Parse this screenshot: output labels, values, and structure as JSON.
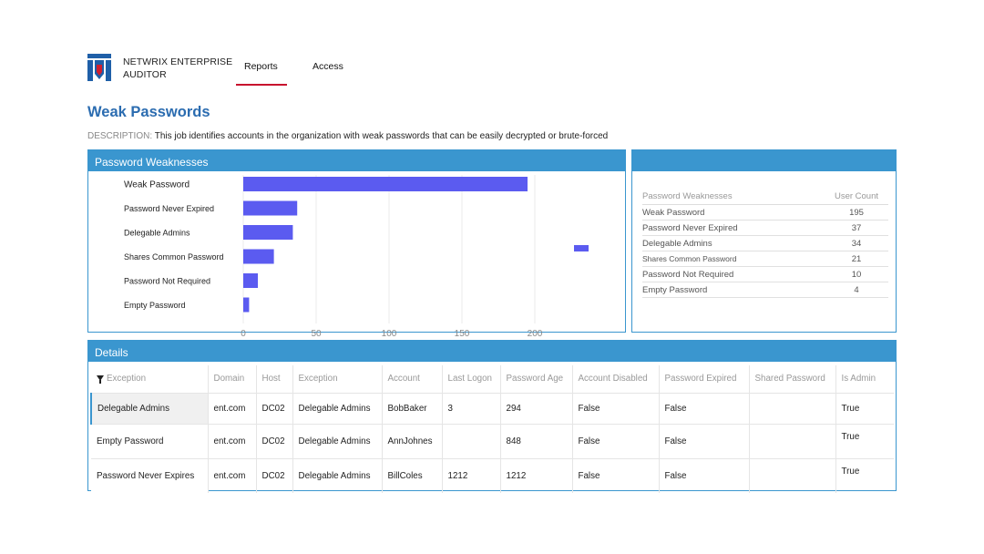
{
  "header": {
    "brand_line1": "NETWRIX ENTERPRISE",
    "brand_line2": "AUDITOR",
    "tabs": [
      {
        "label": "Reports",
        "active": true
      },
      {
        "label": "Access",
        "active": false
      }
    ],
    "accent_color": "#c8102e"
  },
  "page": {
    "title": "Weak Passwords",
    "description_label": "DESCRIPTION:",
    "description_text": "This job identifies accounts in the organization with weak passwords that can be easily decrypted or brute-forced"
  },
  "chart_panel": {
    "title": "Password Weaknesses"
  },
  "chart_data": {
    "type": "bar",
    "orientation": "horizontal",
    "categories": [
      "Weak Password",
      "Password Never Expired",
      "Delegable Admins",
      "Shares Common Password",
      "Password Not Required",
      "Empty Password"
    ],
    "values": [
      195,
      37,
      34,
      21,
      10,
      4
    ],
    "xticks": [
      0,
      50,
      100,
      150,
      200
    ],
    "xlim": [
      0,
      200
    ],
    "grid": true,
    "bar_color": "#5b5bf0",
    "legend_swatch": true
  },
  "summary_table": {
    "headers": [
      "Password Weaknesses",
      "User Count"
    ],
    "rows": [
      [
        "Weak Password",
        "195"
      ],
      [
        "Password Never Expired",
        "37"
      ],
      [
        "Delegable Admins",
        "34"
      ],
      [
        "Shares Common Password",
        "21"
      ],
      [
        "Password Not Required",
        "10"
      ],
      [
        "Empty Password",
        "4"
      ]
    ]
  },
  "details": {
    "title": "Details",
    "filter_header": "Exception",
    "headers": [
      "Domain",
      "Host",
      "Exception",
      "Account",
      "Last Logon",
      "Password Age",
      "Account Disabled",
      "Password Expired",
      "Shared Password",
      "Is Admin"
    ],
    "rows": [
      {
        "exception": "Delegable Admins",
        "cells": [
          "ent.com",
          "DC02",
          "Delegable Admins",
          "BobBaker",
          "3",
          "294",
          "False",
          "False",
          "",
          "True"
        ]
      },
      {
        "exception": "Empty Password",
        "cells": [
          "ent.com",
          "DC02",
          "Delegable Admins",
          "AnnJohnes",
          "",
          "848",
          "False",
          "False",
          "",
          "True"
        ]
      },
      {
        "exception": "Password Never Expires",
        "cells": [
          "ent.com",
          "DC02",
          "Delegable Admins",
          "BillColes",
          "1212",
          "1212",
          "False",
          "False",
          "",
          "True"
        ]
      }
    ]
  }
}
